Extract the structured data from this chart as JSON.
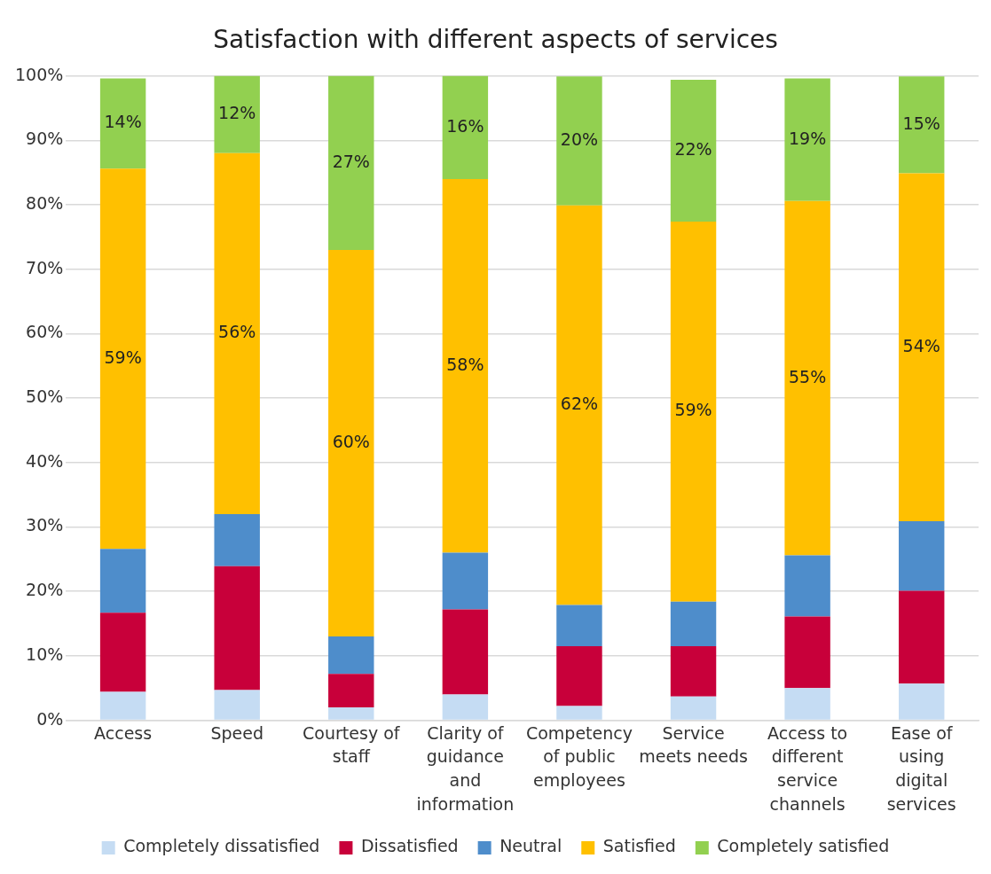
{
  "chart_data": {
    "type": "bar",
    "title": "Satisfaction with different aspects of services",
    "stacked": true,
    "categories": [
      "Access",
      "Speed",
      "Courtesy of staff",
      "Clarity of guidance and information",
      "Competency of public employees",
      "Service meets needs",
      "Access to different service channels",
      "Ease of using digital services"
    ],
    "series": [
      {
        "name": "Completely dissatisfied",
        "color": "#c5dcf3",
        "values": [
          4.4,
          4.7,
          2.0,
          4.0,
          2.2,
          3.7,
          5.0,
          5.7
        ]
      },
      {
        "name": "Dissatisfied",
        "color": "#c8003a",
        "values": [
          12.3,
          19.2,
          5.2,
          13.2,
          9.3,
          7.8,
          11.1,
          14.4
        ]
      },
      {
        "name": "Neutral",
        "color": "#4e8dcb",
        "values": [
          9.9,
          8.1,
          5.8,
          8.8,
          6.4,
          6.9,
          9.5,
          10.8
        ]
      },
      {
        "name": "Satisfied",
        "color": "#ffc000",
        "values": [
          59,
          56,
          60,
          58,
          62,
          59,
          55,
          54
        ],
        "value_labels": [
          "59%",
          "56%",
          "60%",
          "58%",
          "62%",
          "59%",
          "55%",
          "54%"
        ]
      },
      {
        "name": "Completely satisfied",
        "color": "#92d050",
        "values": [
          14,
          12,
          27,
          16,
          20,
          22,
          19,
          15
        ],
        "value_labels": [
          "14%",
          "12%",
          "27%",
          "16%",
          "20%",
          "22%",
          "19%",
          "15%"
        ]
      }
    ],
    "ylim": [
      0,
      100
    ],
    "yticks": [
      {
        "value": 0,
        "label": "0%"
      },
      {
        "value": 10,
        "label": "10%"
      },
      {
        "value": 20,
        "label": "20%"
      },
      {
        "value": 30,
        "label": "30%"
      },
      {
        "value": 40,
        "label": "40%"
      },
      {
        "value": 50,
        "label": "50%"
      },
      {
        "value": 60,
        "label": "60%"
      },
      {
        "value": 70,
        "label": "70%"
      },
      {
        "value": 80,
        "label": "80%"
      },
      {
        "value": 90,
        "label": "90%"
      },
      {
        "value": 100,
        "label": "100%"
      }
    ],
    "grid": "y",
    "legend": "bottom"
  }
}
